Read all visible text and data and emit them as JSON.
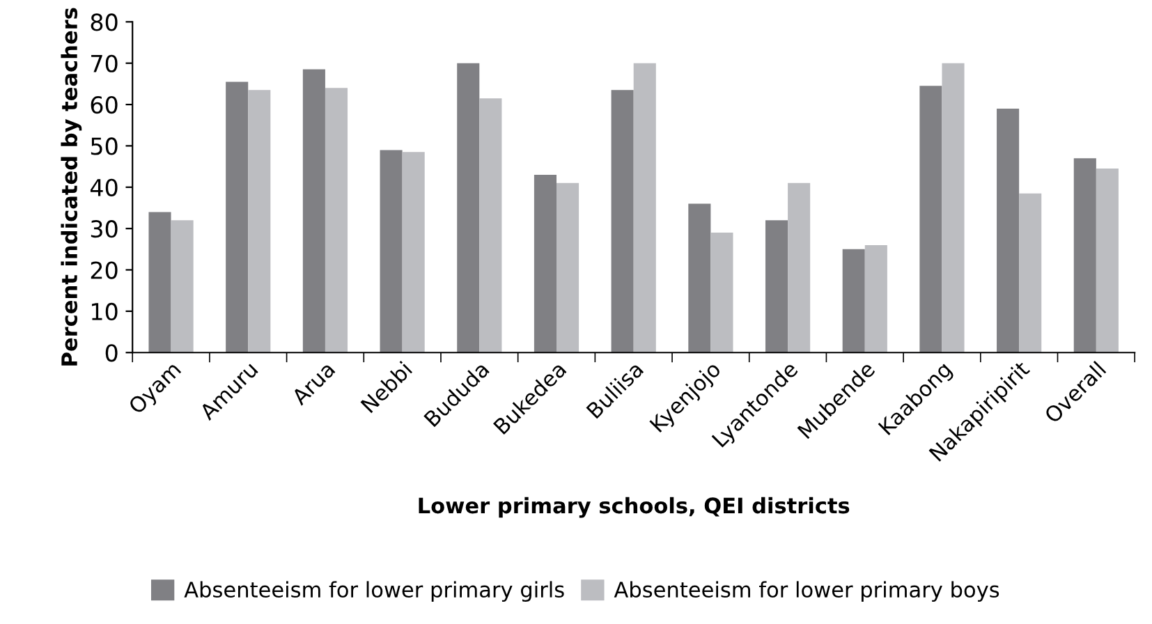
{
  "chart_data": {
    "type": "bar",
    "xlabel": "Lower primary schools, QEI districts",
    "ylabel": "Percent indicated by teachers",
    "categories": [
      "Oyam",
      "Amuru",
      "Arua",
      "Nebbi",
      "Bududa",
      "Bukedea",
      "Buliisa",
      "Kyenjojo",
      "Lyantonde",
      "Mubende",
      "Kaabong",
      "Nakapiripirit",
      "Overall"
    ],
    "series": [
      {
        "name": "Absenteeism for lower primary girls",
        "color": "#808084",
        "values": [
          34,
          65.5,
          68.5,
          49,
          70,
          43,
          63.5,
          36,
          32,
          25,
          64.5,
          59,
          47
        ]
      },
      {
        "name": "Absenteeism for lower primary boys",
        "color": "#bcbdc1",
        "values": [
          32,
          63.5,
          64,
          48.5,
          61.5,
          41,
          70,
          29,
          41,
          26,
          70,
          38.5,
          44.5
        ]
      }
    ],
    "ylim": [
      0,
      80
    ],
    "yticks": [
      0,
      10,
      20,
      30,
      40,
      50,
      60,
      70,
      80
    ],
    "grid": false,
    "legend": "bottom"
  }
}
